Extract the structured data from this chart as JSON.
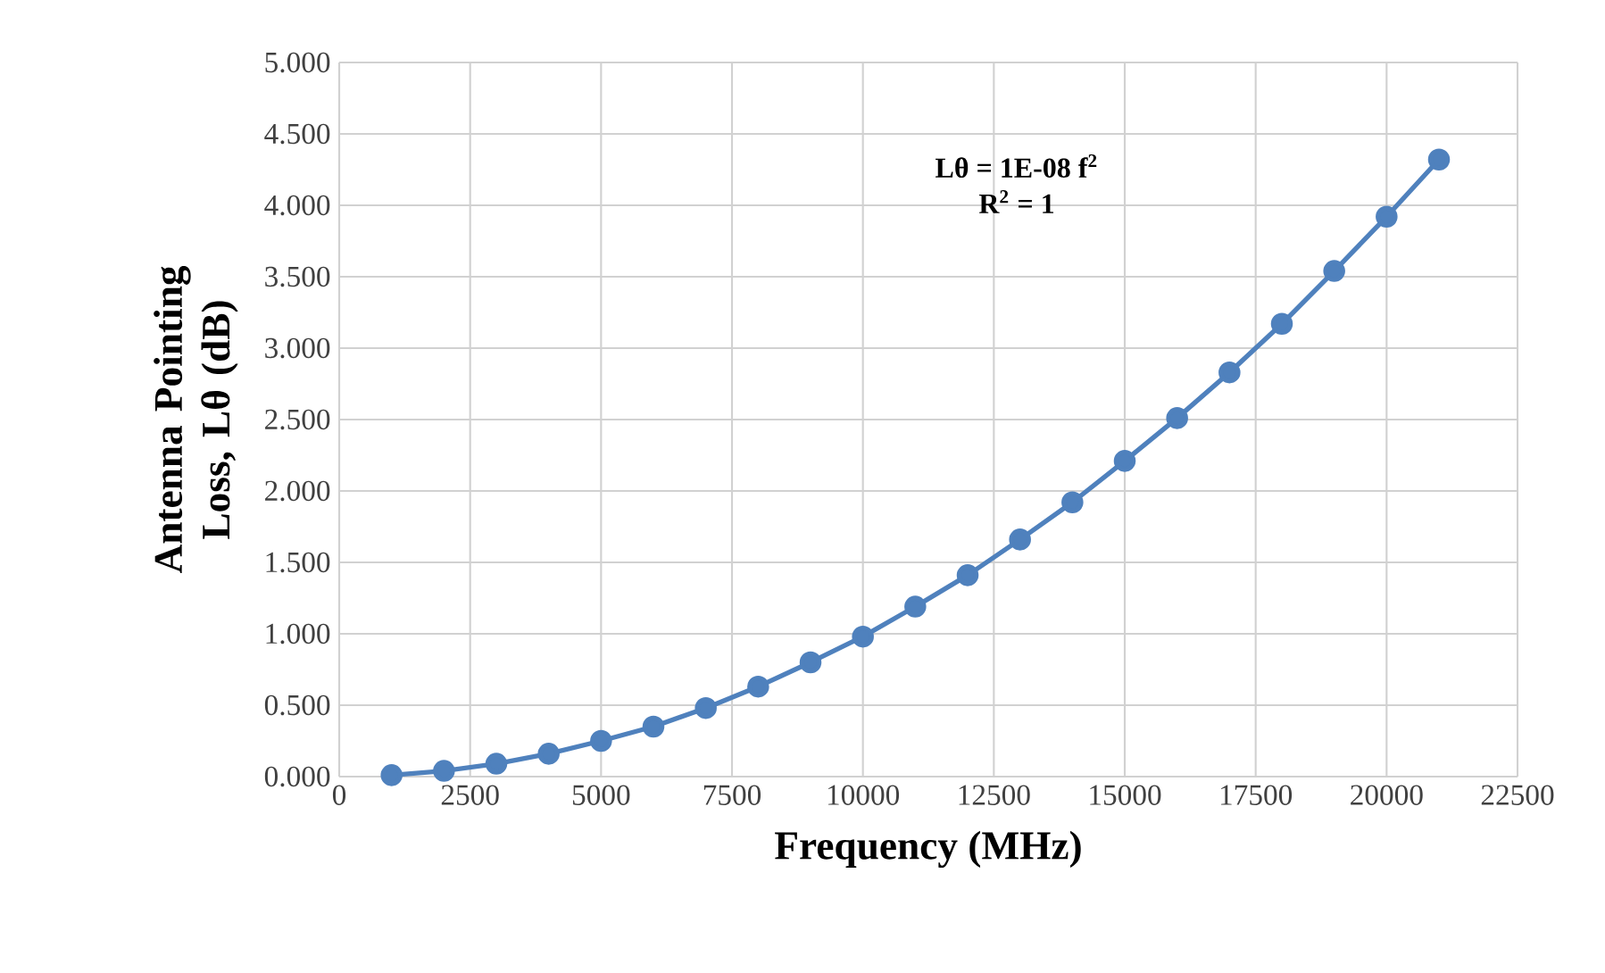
{
  "chart_data": {
    "type": "line",
    "xlabel": "Frequency (MHz)",
    "ylabel": "Antenna Pointing Loss, Lθ (dB)",
    "annotations": [
      "Lθ = 1E-08 f$^{2}$",
      "R$^{2}$ = 1"
    ],
    "x": [
      1000,
      2000,
      3000,
      4000,
      5000,
      6000,
      7000,
      8000,
      9000,
      10000,
      11000,
      12000,
      13000,
      14000,
      15000,
      16000,
      17000,
      18000,
      19000,
      20000,
      21000
    ],
    "series": [
      {
        "color": "#4f81bd",
        "values": [
          0.01,
          0.04,
          0.09,
          0.16,
          0.25,
          0.35,
          0.48,
          0.63,
          0.8,
          0.98,
          1.19,
          1.41,
          1.66,
          1.92,
          2.21,
          2.51,
          2.83,
          3.17,
          3.54,
          3.92,
          4.32
        ]
      }
    ],
    "xlim": [
      0,
      22500
    ],
    "xticks": [
      0,
      2500,
      5000,
      7500,
      10000,
      12500,
      15000,
      17500,
      20000,
      22500
    ],
    "ylim": [
      0,
      5
    ],
    "yticks": [
      {
        "value": 0,
        "label": "0.000"
      },
      {
        "value": 0.5,
        "label": "0.500"
      },
      {
        "value": 1,
        "label": "1.000"
      },
      {
        "value": 1.5,
        "label": "1.500"
      },
      {
        "value": 2,
        "label": "2.000"
      },
      {
        "value": 2.5,
        "label": "2.500"
      },
      {
        "value": 3,
        "label": "3.000"
      },
      {
        "value": 3.5,
        "label": "3.500"
      },
      {
        "value": 4,
        "label": "4.000"
      },
      {
        "value": 4.5,
        "label": "4.500"
      },
      {
        "value": 5,
        "label": "5.000"
      }
    ],
    "grid": true,
    "marker": "circle",
    "line_style": "solid"
  }
}
